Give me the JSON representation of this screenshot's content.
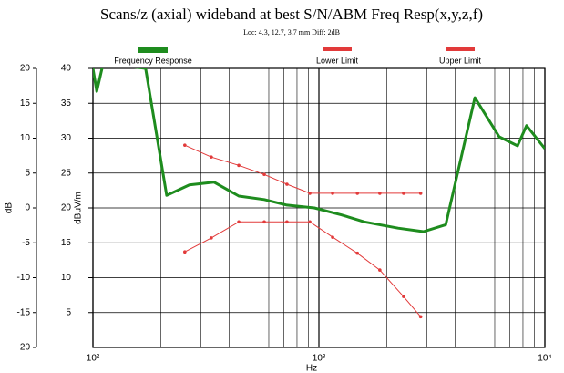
{
  "chart_data": {
    "type": "line",
    "title": "Scans/z (axial) wideband at best S/N/ABM Freq Resp(x,y,z,f)",
    "subtitle": "Loc: 4.3, 12.7, 3.7 mm Diff: 2dB",
    "xlabel": "Hz",
    "ylabel": "dB",
    "y2label": "dBμV/m",
    "xscale": "log",
    "xlim": [
      100,
      10000
    ],
    "xticks": [
      {
        "value": 100,
        "label": "10²"
      },
      {
        "value": 1000,
        "label": "10³"
      },
      {
        "value": 10000,
        "label": "10⁴"
      }
    ],
    "xminorticks": [
      200,
      300,
      400,
      500,
      600,
      700,
      800,
      900,
      2000,
      3000,
      4000,
      5000,
      6000,
      7000,
      8000,
      9000
    ],
    "ylim": [
      -20,
      20
    ],
    "yticks": [
      -20,
      -15,
      -10,
      -5,
      0,
      5,
      10,
      15,
      20
    ],
    "y2lim": [
      0,
      40
    ],
    "y2ticks": [
      5,
      10,
      15,
      20,
      25,
      30,
      35,
      40
    ],
    "grid": true,
    "legend": "top",
    "series": [
      {
        "name": "Frequency Response",
        "color": "#1e8c1e",
        "axis": "y2",
        "markers": false,
        "x": [
          100,
          104,
          111,
          171,
          212,
          267,
          343,
          442,
          573,
          722,
          955,
          1260,
          1590,
          2240,
          2900,
          3640,
          4900,
          6280,
          7570,
          8300,
          10000
        ],
        "values": [
          40,
          36.7,
          40.7,
          40,
          21.8,
          23.3,
          23.7,
          21.7,
          21.2,
          20.4,
          20,
          19,
          18,
          17.1,
          16.6,
          17.6,
          35.8,
          30.2,
          28.9,
          31.8,
          28.5
        ]
      },
      {
        "name": "Lower Limit",
        "color": "#e23a3a",
        "axis": "y2",
        "markers": true,
        "x": [
          255,
          334,
          442,
          573,
          722,
          912,
          1150,
          1480,
          1860,
          2370,
          2820
        ],
        "values": [
          13.7,
          15.7,
          18,
          18,
          18,
          18,
          15.8,
          13.5,
          11.1,
          7.3,
          4.4
        ]
      },
      {
        "name": "Upper Limit",
        "color": "#e23a3a",
        "axis": "y2",
        "markers": true,
        "x": [
          255,
          334,
          442,
          573,
          722,
          912,
          1150,
          1480,
          1860,
          2370,
          2820
        ],
        "values": [
          29,
          27.3,
          26.1,
          24.8,
          23.4,
          22.1,
          22.1,
          22.1,
          22.1,
          22.1,
          22.1
        ]
      }
    ]
  }
}
